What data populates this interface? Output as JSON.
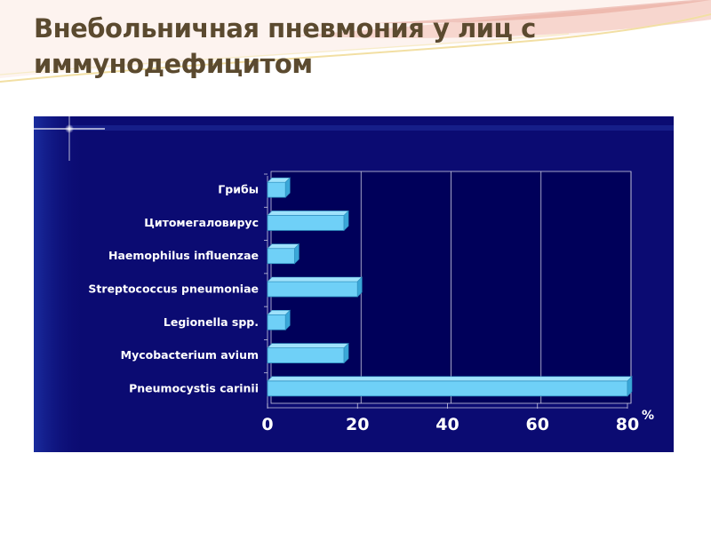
{
  "slide": {
    "title": "Внебольничная пневмония у лиц с иммунодефицитом"
  },
  "colors": {
    "title": "#5b4a2f",
    "panel_background": "#0b0b72",
    "plot_background": "#00005a",
    "bar_fill": "#6fd0f7",
    "bar_edge": "#2e8fbf",
    "text": "#ffffff"
  },
  "chart_data": {
    "type": "bar",
    "orientation": "horizontal",
    "categories": [
      "Грибы",
      "Цитомегаловирус",
      "Haemophilus influenzae",
      "Streptococcus pneumoniae",
      "Legionella spp.",
      "Mycobacterium avium",
      "Pneumocystis carinii"
    ],
    "values": [
      4,
      17,
      6,
      20,
      4,
      17,
      80
    ],
    "x_ticks": [
      "0",
      "20",
      "40",
      "60",
      "80"
    ],
    "xlim": [
      0,
      80
    ],
    "unit_label": "%",
    "grid": "vertical",
    "legend": "none"
  }
}
